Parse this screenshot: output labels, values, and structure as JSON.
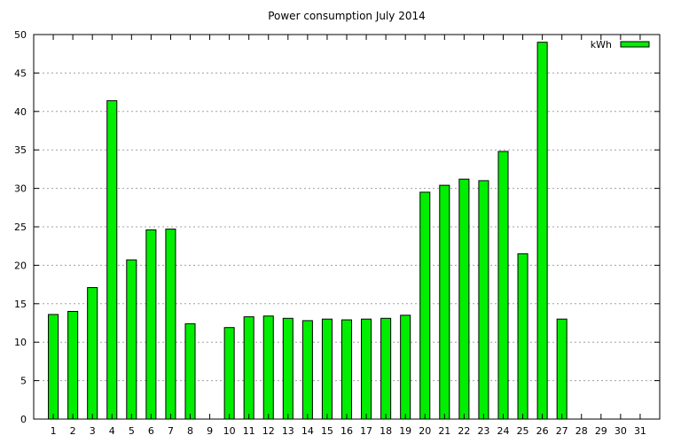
{
  "chart_data": {
    "type": "bar",
    "title": "Power consumption July 2014",
    "xlabel": "",
    "ylabel": "",
    "ylim": [
      0,
      50
    ],
    "yticks": [
      0,
      5,
      10,
      15,
      20,
      25,
      30,
      35,
      40,
      45,
      50
    ],
    "grid": true,
    "legend_position": "top-right",
    "bar_color": "#00ee00",
    "categories": [
      "1",
      "2",
      "3",
      "4",
      "5",
      "6",
      "7",
      "8",
      "9",
      "10",
      "11",
      "12",
      "13",
      "14",
      "15",
      "16",
      "17",
      "18",
      "19",
      "20",
      "21",
      "22",
      "23",
      "24",
      "25",
      "26",
      "27",
      "28",
      "29",
      "30",
      "31"
    ],
    "series": [
      {
        "name": "kWh",
        "values": [
          13.6,
          14.0,
          17.1,
          41.4,
          20.7,
          24.6,
          24.7,
          12.4,
          0,
          11.9,
          13.3,
          13.4,
          13.1,
          12.8,
          13.0,
          12.9,
          13.0,
          13.1,
          13.5,
          29.5,
          30.4,
          31.2,
          31.0,
          34.8,
          21.5,
          49.0,
          13.0,
          0,
          0,
          0,
          0
        ]
      }
    ]
  }
}
